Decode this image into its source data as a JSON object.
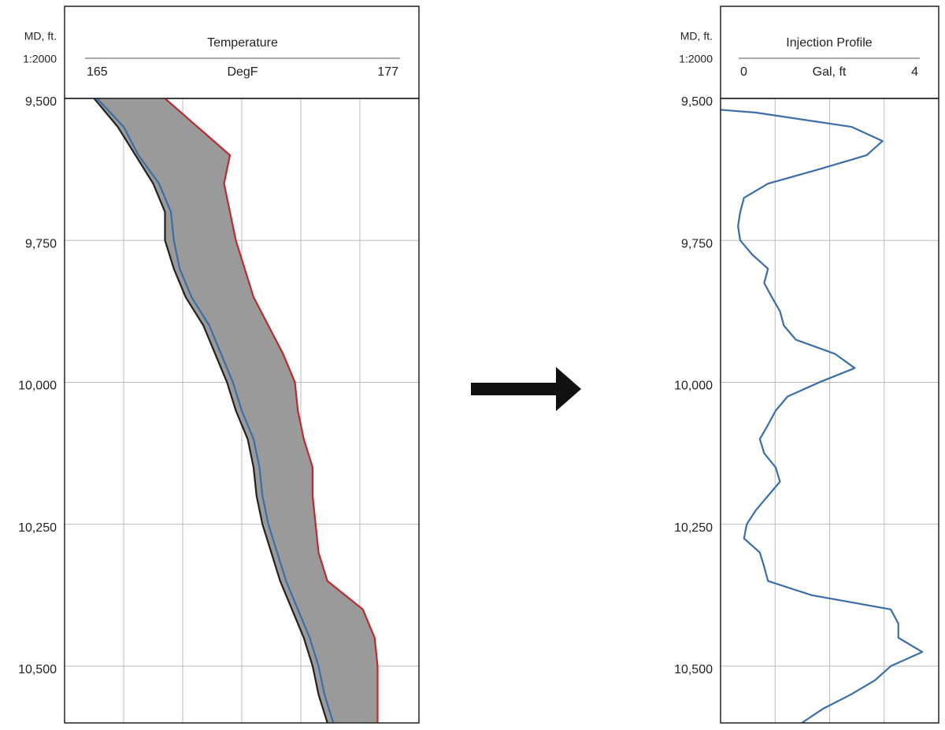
{
  "chart_data": [
    {
      "type": "line",
      "depth_label": "MD, ft.",
      "scale_label": "1:2000",
      "title": "Temperature",
      "x_label": "DegF",
      "xlim": [
        165,
        177
      ],
      "xticks": [
        165,
        {
          "value": 167,
          "label": null
        },
        {
          "value": 169,
          "label": null
        },
        {
          "value": 171,
          "label": null
        },
        {
          "value": 173,
          "label": null
        },
        {
          "value": 175,
          "label": null
        },
        177
      ],
      "ylim": [
        9500,
        10600
      ],
      "y_inverted": true,
      "yticks": [
        {
          "value": 9500,
          "label": "9,500"
        },
        {
          "value": 9750,
          "label": "9,750"
        },
        {
          "value": 10000,
          "label": "10,000"
        },
        {
          "value": 10250,
          "label": "10,250"
        },
        {
          "value": 10500,
          "label": "10,500"
        }
      ],
      "grid": true,
      "y": [
        9500,
        9550,
        9600,
        9650,
        9700,
        9750,
        9800,
        9850,
        9900,
        9950,
        10000,
        10050,
        10100,
        10150,
        10200,
        10250,
        10300,
        10350,
        10400,
        10450,
        10500,
        10550,
        10600
      ],
      "fill_between": [
        1,
        2
      ],
      "fill_color": "#9a9a9a",
      "series": [
        {
          "color": "#3b6ea5",
          "values": [
            166.1,
            167.0,
            167.5,
            168.2,
            168.6,
            168.7,
            168.9,
            169.3,
            169.9,
            170.3,
            170.7,
            171.0,
            171.4,
            171.6,
            171.7,
            171.9,
            172.2,
            172.5,
            172.9,
            173.3,
            173.6,
            173.8,
            174.1
          ]
        },
        {
          "color": "#222222",
          "values": [
            166.0,
            166.8,
            167.4,
            168.0,
            168.4,
            168.4,
            168.7,
            169.1,
            169.7,
            170.1,
            170.5,
            170.8,
            171.2,
            171.4,
            171.5,
            171.7,
            172.0,
            172.3,
            172.7,
            173.1,
            173.4,
            173.6,
            173.9
          ]
        },
        {
          "color": "#c0282d",
          "values": [
            168.4,
            169.5,
            170.6,
            170.4,
            170.6,
            170.8,
            171.1,
            171.4,
            171.9,
            172.4,
            172.8,
            172.9,
            173.1,
            173.4,
            173.4,
            173.5,
            173.6,
            173.9,
            175.1,
            175.5,
            175.6,
            175.6,
            175.6
          ]
        }
      ]
    },
    {
      "type": "line",
      "depth_label": "MD, ft.",
      "scale_label": "1:2000",
      "title": "Injection Profile",
      "x_label": "Gal, ft",
      "xlim": [
        0,
        4
      ],
      "xticks": [
        0,
        {
          "value": 1,
          "label": null
        },
        {
          "value": 2,
          "label": null
        },
        {
          "value": 3,
          "label": null
        },
        4
      ],
      "ylim": [
        9500,
        10600
      ],
      "y_inverted": true,
      "yticks": [
        {
          "value": 9500,
          "label": "9,500"
        },
        {
          "value": 9750,
          "label": "9,750"
        },
        {
          "value": 10000,
          "label": "10,000"
        },
        {
          "value": 10250,
          "label": "10,250"
        },
        {
          "value": 10500,
          "label": "10,500"
        }
      ],
      "grid": true,
      "y": [
        9520,
        9525,
        9550,
        9575,
        9600,
        9625,
        9650,
        9675,
        9700,
        9725,
        9750,
        9775,
        9800,
        9825,
        9850,
        9875,
        9900,
        9925,
        9950,
        9975,
        10000,
        10025,
        10050,
        10075,
        10100,
        10125,
        10150,
        10175,
        10200,
        10225,
        10250,
        10275,
        10300,
        10325,
        10350,
        10375,
        10400,
        10425,
        10450,
        10475,
        10500,
        10525,
        10550,
        10575,
        10600
      ],
      "series": [
        {
          "color": "#3b6ea5",
          "values": [
            0,
            0.65,
            2.4,
            2.97,
            2.68,
            1.8,
            0.87,
            0.43,
            0.36,
            0.32,
            0.36,
            0.58,
            0.87,
            0.8,
            0.94,
            1.09,
            1.16,
            1.38,
            2.1,
            2.46,
            1.81,
            1.23,
            1.01,
            0.87,
            0.72,
            0.8,
            1.01,
            1.09,
            0.87,
            0.65,
            0.48,
            0.43,
            0.72,
            0.8,
            0.87,
            1.67,
            3.12,
            3.26,
            3.26,
            3.7,
            3.12,
            2.83,
            2.39,
            1.88,
            1.49
          ]
        }
      ]
    }
  ]
}
